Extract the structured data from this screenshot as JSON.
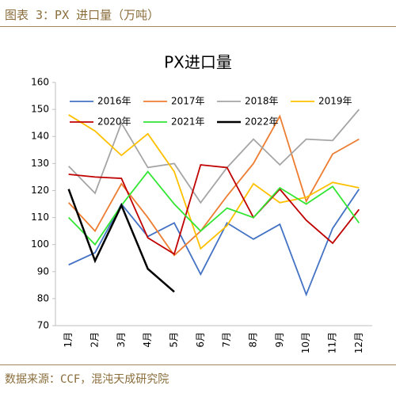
{
  "header": {
    "title": "图表 3：PX 进口量（万吨）"
  },
  "footer": {
    "source": "数据来源：CCF，混沌天成研究院"
  },
  "chart_data": {
    "type": "line",
    "title": "PX进口量",
    "categories": [
      "1月",
      "2月",
      "3月",
      "4月",
      "5月",
      "6月",
      "7月",
      "8月",
      "9月",
      "10月",
      "11月",
      "12月"
    ],
    "series": [
      {
        "name": "2016年",
        "color": "#4472c4",
        "values": [
          92.5,
          97,
          115,
          103,
          108,
          89,
          108,
          102,
          107.5,
          81.5,
          106,
          120.5
        ]
      },
      {
        "name": "2017年",
        "color": "#ed7d31",
        "values": [
          115.5,
          105,
          122.5,
          110,
          96,
          105,
          118,
          130,
          147.5,
          116,
          133.5,
          139
        ]
      },
      {
        "name": "2018年",
        "color": "#a5a5a5",
        "values": [
          129,
          119,
          145,
          128.5,
          130,
          115.5,
          128.5,
          139,
          129.5,
          139,
          138.5,
          150
        ]
      },
      {
        "name": "2019年",
        "color": "#ffc000",
        "values": [
          148,
          142,
          133,
          141,
          127,
          98.5,
          107,
          122.5,
          115.5,
          117.5,
          123,
          121
        ]
      },
      {
        "name": "2020年",
        "color": "#c00000",
        "values": [
          126,
          125,
          124.5,
          102.5,
          96.5,
          129.5,
          128.5,
          110,
          120.5,
          109,
          100.5,
          113
        ]
      },
      {
        "name": "2021年",
        "color": "#33e633",
        "values": [
          110,
          100,
          114.5,
          127,
          115,
          105,
          113.5,
          110,
          121,
          115,
          121.5,
          108
        ]
      },
      {
        "name": "2022年",
        "color": "#000000",
        "values": [
          120.5,
          94,
          114.5,
          91,
          82.5,
          null,
          null,
          null,
          null,
          null,
          null,
          null
        ]
      }
    ],
    "ylim": [
      70,
      160
    ],
    "yticks": [
      70,
      80,
      90,
      100,
      110,
      120,
      130,
      140,
      150,
      160
    ],
    "grid": false,
    "legend": "top"
  }
}
